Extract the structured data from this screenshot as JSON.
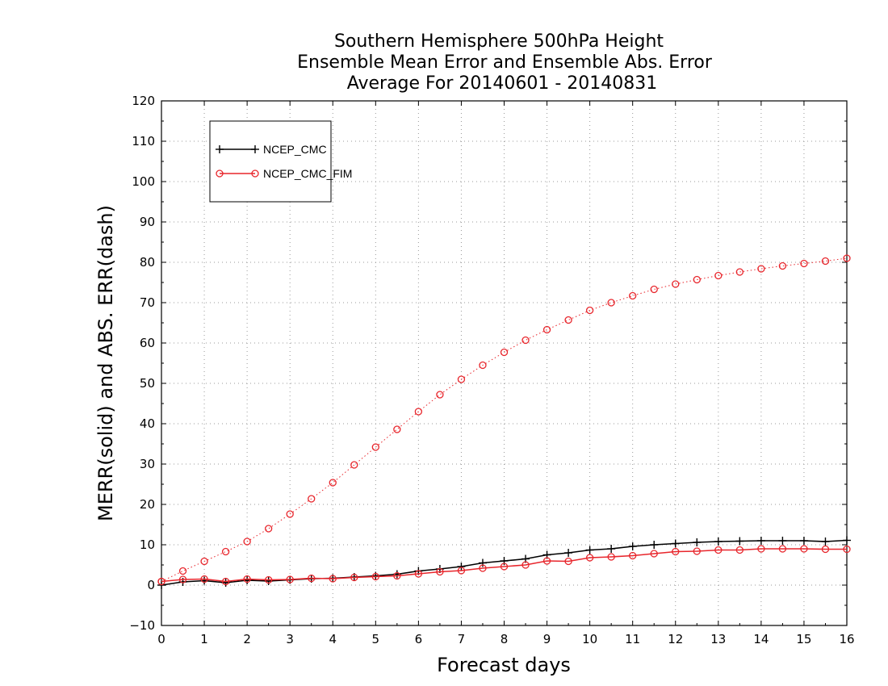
{
  "chart_data": {
    "type": "line",
    "title_lines": [
      "Southern Hemisphere 500hPa Height",
      "Ensemble Mean Error and Ensemble Abs. Error",
      "Average For 20140601 - 20140831"
    ],
    "xlabel": "Forecast days",
    "ylabel": "MERR(solid) and ABS. ERR(dash)",
    "xlim": [
      0,
      16
    ],
    "ylim": [
      -10,
      120
    ],
    "xticks": [
      0,
      1,
      2,
      3,
      4,
      5,
      6,
      7,
      8,
      9,
      10,
      11,
      12,
      13,
      14,
      15,
      16
    ],
    "yticks": [
      -10,
      0,
      10,
      20,
      30,
      40,
      50,
      60,
      70,
      80,
      90,
      100,
      110,
      120
    ],
    "grid": true,
    "legend_position": "top-left",
    "x": [
      0,
      0.5,
      1,
      1.5,
      2,
      2.5,
      3,
      3.5,
      4,
      4.5,
      5,
      5.5,
      6,
      6.5,
      7,
      7.5,
      8,
      8.5,
      9,
      9.5,
      10,
      10.5,
      11,
      11.5,
      12,
      12.5,
      13,
      13.5,
      14,
      14.5,
      15,
      15.5,
      16
    ],
    "series": [
      {
        "name": "NCEP_CMC",
        "color": "#000000",
        "marker": "plus",
        "style": "solid",
        "values": [
          0,
          0.8,
          1.1,
          0.6,
          1.2,
          1.0,
          1.3,
          1.6,
          1.7,
          2.0,
          2.3,
          2.7,
          3.5,
          4.0,
          4.6,
          5.5,
          6.0,
          6.5,
          7.5,
          8.0,
          8.7,
          9.0,
          9.6,
          10.0,
          10.3,
          10.6,
          10.8,
          10.9,
          11.0,
          11.0,
          11.0,
          10.8,
          11.1
        ]
      },
      {
        "name": "NCEP_CMC_FIM",
        "color": "#e8262c",
        "marker": "circle",
        "style": "solid",
        "values": [
          0.9,
          1.4,
          1.5,
          0.9,
          1.5,
          1.3,
          1.4,
          1.7,
          1.6,
          1.9,
          2.1,
          2.3,
          2.8,
          3.3,
          3.6,
          4.2,
          4.6,
          5.0,
          6.0,
          5.9,
          6.8,
          7.0,
          7.3,
          7.8,
          8.3,
          8.4,
          8.7,
          8.7,
          9.0,
          9.0,
          9.0,
          8.9,
          8.9
        ]
      },
      {
        "name": "NCEP_CMC_FIM",
        "color": "#e8262c",
        "marker": "circle",
        "style": "dotted",
        "values": [
          0.9,
          3.5,
          5.9,
          8.3,
          10.8,
          14.0,
          17.6,
          21.4,
          25.4,
          29.8,
          34.2,
          38.6,
          43.0,
          47.2,
          51.0,
          54.5,
          57.7,
          60.7,
          63.3,
          65.7,
          68.1,
          70.0,
          71.7,
          73.3,
          74.6,
          75.7,
          76.7,
          77.6,
          78.4,
          79.1,
          79.7,
          80.3,
          81.0
        ]
      }
    ]
  }
}
